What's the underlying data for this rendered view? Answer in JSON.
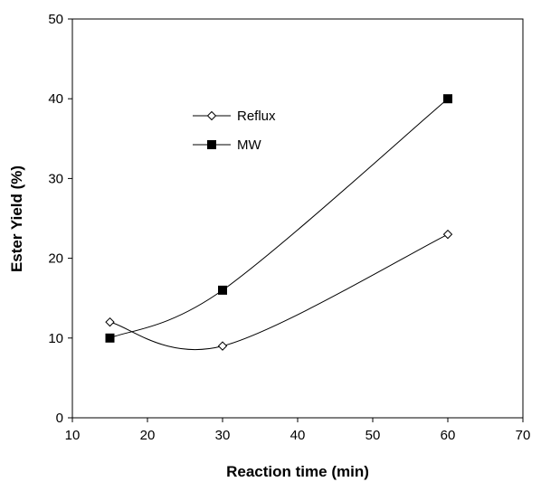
{
  "chart_data": {
    "type": "line",
    "xlabel": "Reaction time (min)",
    "ylabel": "Ester Yield (%)",
    "xlim": [
      10,
      70
    ],
    "ylim": [
      0,
      50
    ],
    "xticks": [
      10,
      20,
      30,
      40,
      50,
      60,
      70
    ],
    "yticks": [
      0,
      10,
      20,
      30,
      40,
      50
    ],
    "grid": false,
    "legend_position": "upper-left-inside",
    "series": [
      {
        "name": "Reflux",
        "marker": "open-diamond",
        "color": "#000000",
        "smooth": true,
        "x": [
          15,
          30,
          60
        ],
        "y": [
          12,
          9,
          23
        ]
      },
      {
        "name": "MW",
        "marker": "filled-square",
        "color": "#000000",
        "smooth": true,
        "x": [
          15,
          30,
          60
        ],
        "y": [
          10,
          16,
          40
        ]
      }
    ]
  }
}
